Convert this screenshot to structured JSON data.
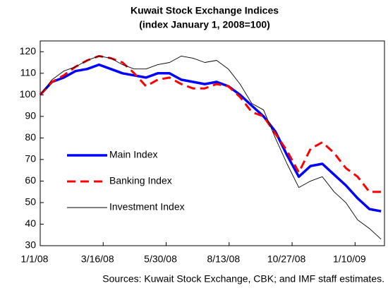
{
  "chart_data": {
    "type": "line",
    "title": "Kuwait Stock Exchange Indices",
    "subtitle": "(index January 1, 2008=100)",
    "source": "Sources: Kuwait Stock Exchange, CBK; and IMF staff estimates.",
    "x": [
      "1/1/08",
      "1/15/08",
      "1/29/08",
      "2/12/08",
      "2/26/08",
      "3/11/08",
      "3/25/08",
      "4/8/08",
      "4/22/08",
      "5/6/08",
      "5/20/08",
      "6/3/08",
      "6/17/08",
      "7/1/08",
      "7/15/08",
      "7/29/08",
      "8/12/08",
      "8/26/08",
      "9/9/08",
      "9/23/08",
      "10/7/08",
      "10/21/08",
      "11/4/08",
      "11/18/08",
      "12/2/08",
      "12/16/08",
      "12/30/08",
      "1/13/09",
      "1/27/09",
      "2/10/09"
    ],
    "series": [
      {
        "name": "Main Index",
        "color": "#0000ff",
        "values": [
          100,
          106,
          108,
          111,
          112,
          114,
          112,
          110,
          109,
          108,
          110,
          110,
          107,
          106,
          105,
          106,
          104,
          100,
          95,
          90,
          83,
          72,
          62,
          67,
          68,
          63,
          58,
          52,
          47,
          46
        ]
      },
      {
        "name": "Banking Index",
        "color": "#ff0000",
        "values": [
          100,
          106,
          109,
          113,
          116,
          118,
          117,
          115,
          110,
          104,
          107,
          108,
          105,
          103,
          103,
          105,
          104,
          99,
          92,
          90,
          82,
          74,
          64,
          75,
          78,
          73,
          66,
          62,
          55,
          55
        ]
      },
      {
        "name": "Investment Index",
        "color": "#000000",
        "values": [
          100,
          107,
          111,
          113,
          116,
          118,
          117,
          114,
          112,
          112,
          114,
          115,
          118,
          117,
          115,
          116,
          112,
          105,
          96,
          93,
          80,
          68,
          57,
          60,
          62,
          55,
          50,
          42,
          38,
          33
        ]
      }
    ],
    "xlim": [
      "1/1/08",
      "2/14/09"
    ],
    "xticks": [
      "1/1/08",
      "3/16/08",
      "5/30/08",
      "8/13/08",
      "10/27/08",
      "1/10/09"
    ],
    "ylim": [
      30,
      125
    ],
    "yticks": [
      30,
      40,
      50,
      60,
      70,
      80,
      90,
      100,
      110,
      120
    ]
  }
}
